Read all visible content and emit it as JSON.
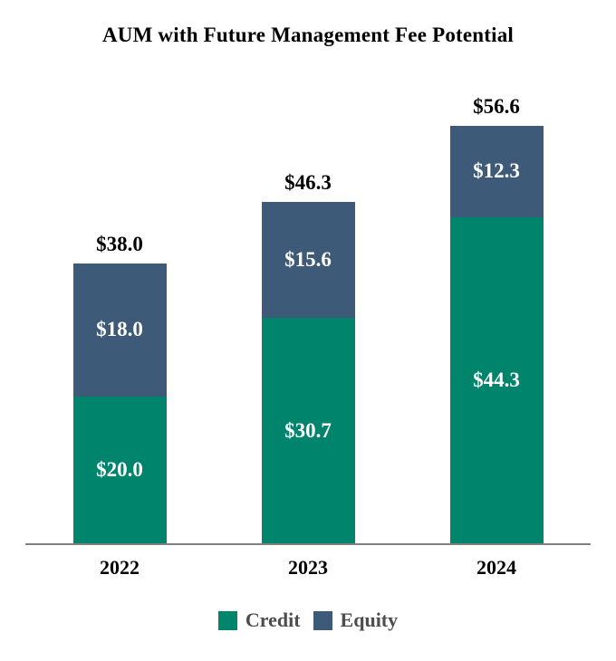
{
  "title": "AUM with Future Management Fee Potential",
  "chart_data": {
    "type": "bar",
    "stacked": true,
    "title": "AUM with Future Management Fee Potential",
    "categories": [
      "2022",
      "2023",
      "2024"
    ],
    "series": [
      {
        "name": "Credit",
        "color": "#00846B",
        "values": [
          20.0,
          30.7,
          44.3
        ],
        "labels": [
          "$20.0",
          "$30.7",
          "$44.3"
        ]
      },
      {
        "name": "Equity",
        "color": "#3D5A78",
        "values": [
          18.0,
          15.6,
          12.3
        ],
        "labels": [
          "$18.0",
          "$15.6",
          "$12.3"
        ]
      }
    ],
    "totals": [
      38.0,
      46.3,
      56.6
    ],
    "total_labels": [
      "$38.0",
      "$46.3",
      "$56.6"
    ],
    "xlabel": "",
    "ylabel": "",
    "ylim": [
      0,
      60
    ],
    "grid": false,
    "legend_position": "bottom",
    "legend": [
      {
        "label": "Credit",
        "color": "#00846B"
      },
      {
        "label": "Equity",
        "color": "#3D5A78"
      }
    ]
  }
}
